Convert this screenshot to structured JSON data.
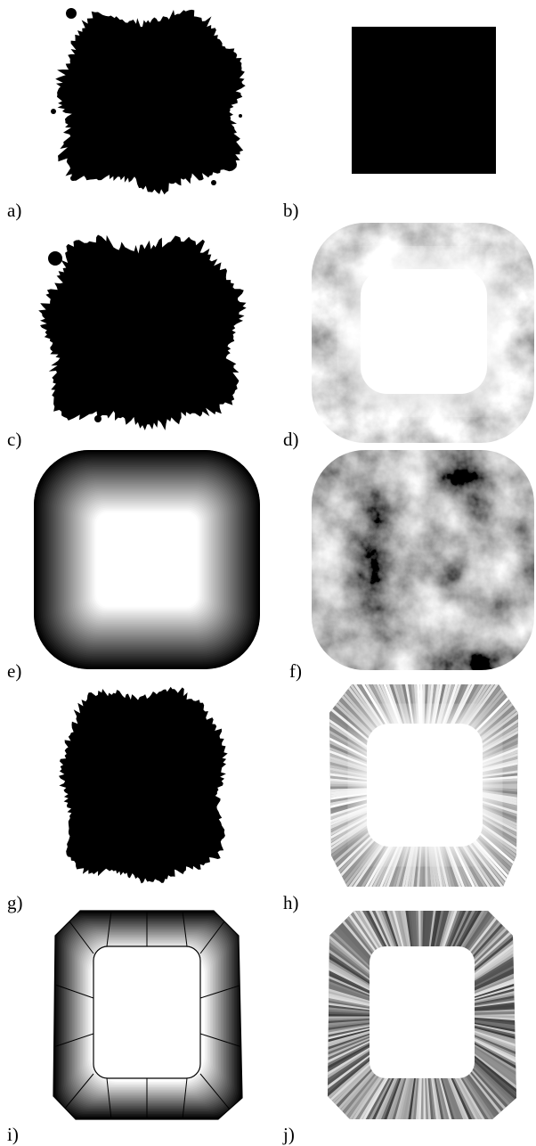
{
  "panels": [
    {
      "label": "a)"
    },
    {
      "label": "b)"
    },
    {
      "label": "c)"
    },
    {
      "label": "d)"
    },
    {
      "label": "e)"
    },
    {
      "label": "f)"
    },
    {
      "label": "g)"
    },
    {
      "label": "h)"
    },
    {
      "label": "i)"
    },
    {
      "label": "j)"
    }
  ]
}
